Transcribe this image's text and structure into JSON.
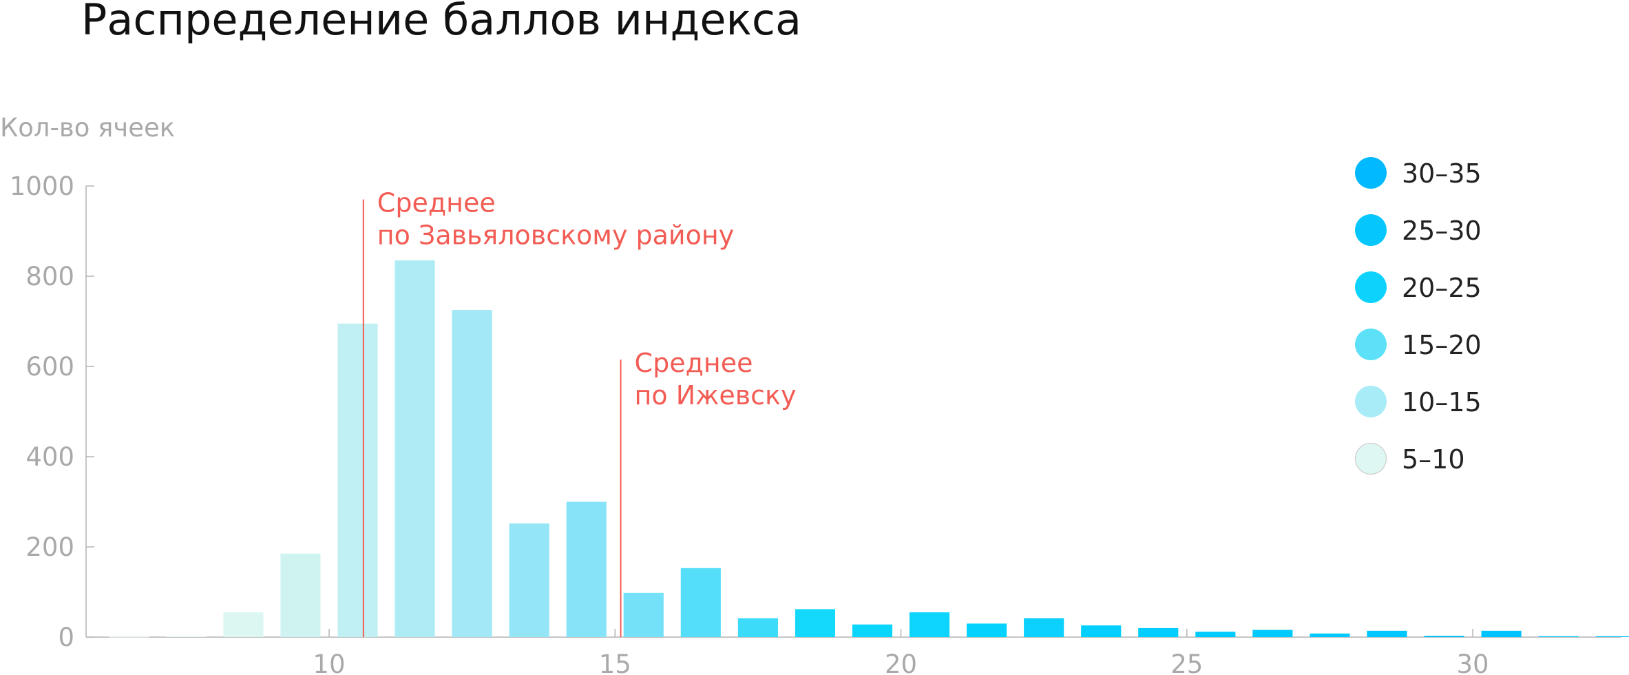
{
  "chart_data": {
    "type": "bar",
    "title": "Распределение баллов индекса",
    "ylabel": "Кол-во ячеек",
    "xlabel": "",
    "ylim": [
      0,
      1000
    ],
    "xlim": [
      5.75,
      32.6
    ],
    "yticks": [
      "0",
      "200",
      "400",
      "600",
      "800",
      "1000"
    ],
    "xticks": [
      "10",
      "15",
      "20",
      "25",
      "30"
    ],
    "x": [
      6.5,
      7.5,
      8.5,
      9.5,
      10.5,
      11.5,
      12.5,
      13.5,
      14.5,
      15.5,
      16.5,
      17.5,
      18.5,
      19.5,
      20.5,
      21.5,
      22.5,
      23.5,
      24.5,
      25.5,
      26.5,
      27.5,
      28.5,
      29.5,
      30.5,
      31.5,
      32.5
    ],
    "values": [
      1,
      2,
      55,
      185,
      695,
      835,
      725,
      252,
      300,
      98,
      153,
      42,
      62,
      28,
      55,
      30,
      42,
      26,
      20,
      12,
      16,
      8,
      14,
      3,
      14,
      2,
      2
    ],
    "groups": [
      "5–10",
      "5–10",
      "5–10",
      "5–10",
      "10–15",
      "10–15",
      "10–15",
      "10–15",
      "10–15",
      "15–20",
      "15–20",
      "15–20",
      "15–20",
      "15–20",
      "20–25",
      "20–25",
      "20–25",
      "20–25",
      "20–25",
      "25–30",
      "25–30",
      "25–30",
      "25–30",
      "25–30",
      "30–35",
      "30–35",
      "30–35"
    ],
    "colors": [
      "#e9f8f3",
      "#e9f8f3",
      "#dcf6f1",
      "#cff3f1",
      "#c0f0f3",
      "#adebf5",
      "#a2e8f6",
      "#94e5f6",
      "#87e3f7",
      "#74e1f8",
      "#55def9",
      "#3cdbfa",
      "#15d8fd",
      "#0ad6fd",
      "#0ed5fe",
      "#05d3fe",
      "#0cd1fe",
      "#03cffe",
      "#01cdfe",
      "#01cbfe",
      "#01cafe",
      "#01c8fe",
      "#00c6fe",
      "#00c4fe",
      "#00c2fe",
      "#00c0fe",
      "#00befe"
    ],
    "annotations": [
      {
        "x": 10.6,
        "y": 970,
        "lines": [
          "Среднее",
          "по Завьяловскому району"
        ]
      },
      {
        "x": 15.1,
        "y": 615,
        "lines": [
          "Среднее",
          "по Ижевску"
        ]
      }
    ],
    "annotation_color": "#f25c54",
    "legend": {
      "placement": "right",
      "items": [
        {
          "label": "30–35",
          "color": "#00b9fe"
        },
        {
          "label": "25–30",
          "color": "#05c7fd"
        },
        {
          "label": "20–25",
          "color": "#0dd3fc"
        },
        {
          "label": "15–20",
          "color": "#5ce1f8"
        },
        {
          "label": "10–15",
          "color": "#a8ecf7"
        },
        {
          "label": "5–10",
          "color": "#dff7f2"
        }
      ]
    },
    "grid": false
  }
}
